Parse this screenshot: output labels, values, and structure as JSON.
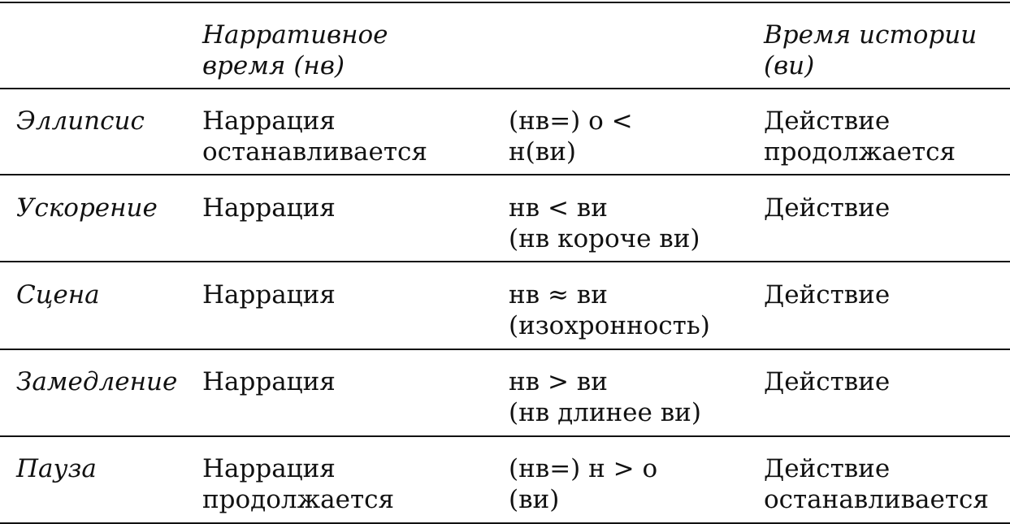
{
  "header": {
    "col0": [],
    "col1": [
      "Нарративное",
      "время (нв)"
    ],
    "col2": [],
    "col3": [
      "Время истории",
      "(ви)"
    ]
  },
  "rows": [
    {
      "name": "Эллипсис",
      "narrative": [
        "Наррация",
        "останавливается"
      ],
      "relation": [
        "(нв=) о <",
        "н(ви)"
      ],
      "story": [
        "Действие",
        "продолжается"
      ]
    },
    {
      "name": "Ускорение",
      "narrative": [
        "Наррация"
      ],
      "relation": [
        "нв < ви",
        "(нв короче ви)"
      ],
      "story": [
        "Действие"
      ]
    },
    {
      "name": "Сцена",
      "narrative": [
        "Наррация"
      ],
      "relation": [
        "нв ≈ ви",
        "(изохронность)"
      ],
      "story": [
        "Действие"
      ]
    },
    {
      "name": "Замедление",
      "narrative": [
        "Наррация"
      ],
      "relation": [
        "нв > ви",
        "(нв длинее ви)"
      ],
      "story": [
        "Действие"
      ]
    },
    {
      "name": "Пауза",
      "narrative": [
        "Наррация",
        "продолжается"
      ],
      "relation": [
        "(нв=) н > о",
        "(ви)"
      ],
      "story": [
        "Действие",
        "останавливается"
      ]
    }
  ]
}
